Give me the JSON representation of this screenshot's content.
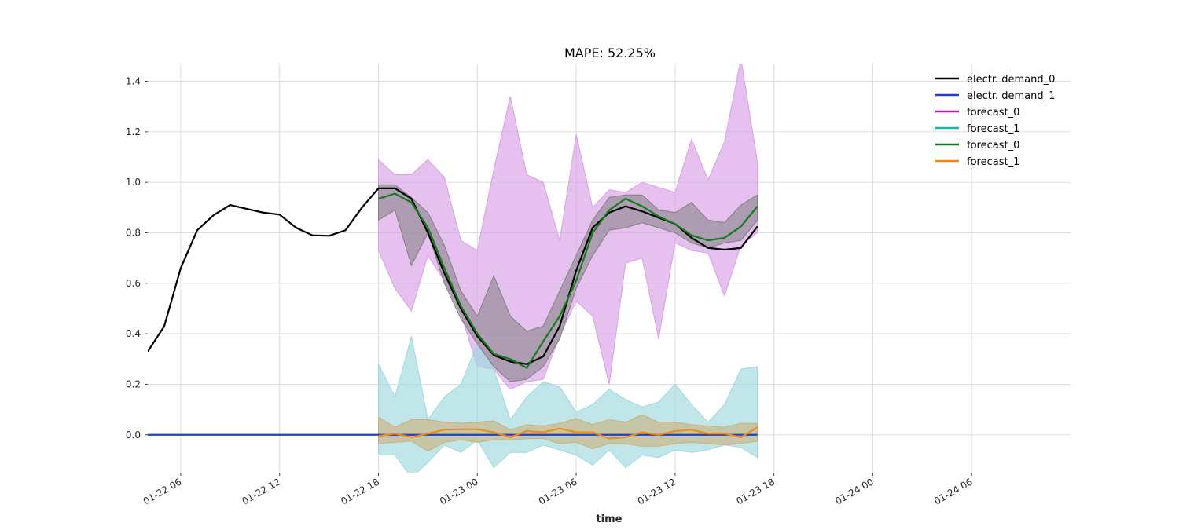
{
  "chart_data": {
    "type": "line",
    "title": "MAPE: 52.25%",
    "xlabel": "time",
    "ylabel": "",
    "x_range": [
      "2015-01-22 04:00",
      "2015-01-24 12:00"
    ],
    "ylim": [
      -0.15,
      1.47
    ],
    "grid": true,
    "legend_position": "top-right",
    "x_ticks": [
      {
        "t": "2015-01-22 06:00",
        "label": "01-22 06"
      },
      {
        "t": "2015-01-22 12:00",
        "label": "01-22 12"
      },
      {
        "t": "2015-01-22 18:00",
        "label": "01-22 18"
      },
      {
        "t": "2015-01-23 00:00",
        "label": "01-23 00"
      },
      {
        "t": "2015-01-23 06:00",
        "label": "01-23 06"
      },
      {
        "t": "2015-01-23 12:00",
        "label": "01-23 12"
      },
      {
        "t": "2015-01-23 18:00",
        "label": "01-23 18"
      },
      {
        "t": "2015-01-24 00:00",
        "label": "01-24 00"
      },
      {
        "t": "2015-01-24 06:00",
        "label": "01-24 06"
      }
    ],
    "y_ticks": [
      {
        "value": 0.0,
        "label": "0.0"
      },
      {
        "value": 0.2,
        "label": "0.2"
      },
      {
        "value": 0.4,
        "label": "0.4"
      },
      {
        "value": 0.6,
        "label": "0.6"
      },
      {
        "value": 0.8,
        "label": "0.8"
      },
      {
        "value": 1.0,
        "label": "1.0"
      },
      {
        "value": 1.2,
        "label": "1.2"
      },
      {
        "value": 1.4,
        "label": "1.4"
      }
    ],
    "forecast_x": [
      "2015-01-22 18:00",
      "2015-01-22 19:00",
      "2015-01-22 20:00",
      "2015-01-22 21:00",
      "2015-01-22 22:00",
      "2015-01-22 23:00",
      "2015-01-23 00:00",
      "2015-01-23 01:00",
      "2015-01-23 02:00",
      "2015-01-23 03:00",
      "2015-01-23 04:00",
      "2015-01-23 05:00",
      "2015-01-23 06:00",
      "2015-01-23 07:00",
      "2015-01-23 08:00",
      "2015-01-23 09:00",
      "2015-01-23 10:00",
      "2015-01-23 11:00",
      "2015-01-23 12:00",
      "2015-01-23 13:00",
      "2015-01-23 14:00",
      "2015-01-23 15:00",
      "2015-01-23 16:00",
      "2015-01-23 17:00"
    ],
    "bands": [
      {
        "color": "#d9a0e6",
        "opacity": 0.65,
        "upper": [
          1.09,
          1.03,
          1.03,
          1.09,
          1.02,
          0.77,
          0.73,
          1.05,
          1.34,
          1.03,
          1.0,
          0.77,
          1.19,
          0.9,
          0.97,
          0.96,
          1.0,
          0.98,
          0.96,
          1.17,
          1.01,
          1.16,
          1.49,
          1.08
        ],
        "lower": [
          0.73,
          0.58,
          0.49,
          0.71,
          0.61,
          0.48,
          0.27,
          0.26,
          0.18,
          0.21,
          0.22,
          0.39,
          0.53,
          0.47,
          0.2,
          0.68,
          0.7,
          0.38,
          0.76,
          0.73,
          0.72,
          0.55,
          0.75,
          0.8
        ]
      },
      {
        "color": "#9ed8df",
        "opacity": 0.65,
        "upper": [
          0.28,
          0.15,
          0.39,
          0.06,
          0.15,
          0.2,
          0.36,
          0.26,
          0.06,
          0.15,
          0.21,
          0.19,
          0.09,
          0.12,
          0.18,
          0.14,
          0.11,
          0.13,
          0.2,
          0.12,
          0.05,
          0.12,
          0.26,
          0.27
        ],
        "lower": [
          -0.08,
          -0.08,
          -0.17,
          -0.11,
          -0.04,
          -0.07,
          -0.02,
          -0.13,
          -0.07,
          -0.07,
          -0.04,
          -0.06,
          -0.08,
          -0.12,
          -0.06,
          -0.13,
          -0.08,
          -0.09,
          -0.06,
          -0.07,
          -0.06,
          -0.04,
          -0.05,
          -0.09
        ]
      },
      {
        "color": "#7f7f7f",
        "opacity": 0.55,
        "upper": [
          0.99,
          0.99,
          0.94,
          0.88,
          0.75,
          0.57,
          0.47,
          0.63,
          0.47,
          0.41,
          0.43,
          0.57,
          0.71,
          0.85,
          0.94,
          0.95,
          0.95,
          0.89,
          0.88,
          0.92,
          0.85,
          0.84,
          0.91,
          0.95
        ],
        "lower": [
          0.85,
          0.89,
          0.67,
          0.8,
          0.6,
          0.46,
          0.36,
          0.27,
          0.21,
          0.22,
          0.27,
          0.38,
          0.58,
          0.71,
          0.81,
          0.82,
          0.84,
          0.82,
          0.8,
          0.76,
          0.74,
          0.76,
          0.77,
          0.85
        ]
      },
      {
        "color": "#c9b07a",
        "opacity": 0.6,
        "upper": [
          0.07,
          0.03,
          0.06,
          0.06,
          0.05,
          0.045,
          0.05,
          0.055,
          0.02,
          0.04,
          0.035,
          0.045,
          0.065,
          0.04,
          0.06,
          0.05,
          0.08,
          0.05,
          0.05,
          0.04,
          0.035,
          0.03,
          0.045,
          0.045
        ],
        "lower": [
          -0.035,
          -0.03,
          -0.025,
          -0.065,
          -0.03,
          -0.02,
          -0.03,
          -0.02,
          -0.02,
          -0.015,
          -0.015,
          -0.035,
          -0.03,
          -0.055,
          -0.035,
          -0.035,
          -0.045,
          -0.045,
          -0.035,
          -0.03,
          -0.035,
          -0.04,
          -0.035,
          -0.025
        ]
      }
    ],
    "series": [
      {
        "name": "electr. demand_0",
        "color": "#000000",
        "x": [
          "2015-01-22 04:00",
          "2015-01-22 05:00",
          "2015-01-22 06:00",
          "2015-01-22 07:00",
          "2015-01-22 08:00",
          "2015-01-22 09:00",
          "2015-01-22 10:00",
          "2015-01-22 11:00",
          "2015-01-22 12:00",
          "2015-01-22 13:00",
          "2015-01-22 14:00",
          "2015-01-22 15:00",
          "2015-01-22 16:00",
          "2015-01-22 17:00",
          "2015-01-22 18:00",
          "2015-01-22 19:00",
          "2015-01-22 20:00",
          "2015-01-22 21:00",
          "2015-01-22 22:00",
          "2015-01-22 23:00",
          "2015-01-23 00:00",
          "2015-01-23 01:00",
          "2015-01-23 02:00",
          "2015-01-23 03:00",
          "2015-01-23 04:00",
          "2015-01-23 05:00",
          "2015-01-23 06:00",
          "2015-01-23 07:00",
          "2015-01-23 08:00",
          "2015-01-23 09:00",
          "2015-01-23 10:00",
          "2015-01-23 11:00",
          "2015-01-23 12:00",
          "2015-01-23 13:00",
          "2015-01-23 14:00",
          "2015-01-23 15:00",
          "2015-01-23 16:00",
          "2015-01-23 17:00"
        ],
        "values": [
          0.33,
          0.43,
          0.66,
          0.81,
          0.87,
          0.91,
          0.895,
          0.88,
          0.872,
          0.82,
          0.79,
          0.788,
          0.81,
          0.9,
          0.976,
          0.976,
          0.935,
          0.8,
          0.64,
          0.5,
          0.39,
          0.315,
          0.29,
          0.28,
          0.31,
          0.43,
          0.65,
          0.82,
          0.88,
          0.905,
          0.885,
          0.86,
          0.835,
          0.78,
          0.74,
          0.733,
          0.74,
          0.825
        ]
      },
      {
        "name": "electr. demand_1",
        "color": "#1a3fd6",
        "x": [
          "2015-01-22 04:00",
          "2015-01-23 17:00"
        ],
        "values": [
          0.0,
          0.0
        ]
      },
      {
        "name": "forecast_0",
        "color": "#b01fb8",
        "x": [],
        "values": []
      },
      {
        "name": "forecast_1",
        "color": "#1fb5b8",
        "x": [],
        "values": []
      },
      {
        "name": "forecast_0",
        "color": "#157a1c",
        "x": "forecast_x",
        "values": [
          0.935,
          0.955,
          0.92,
          0.82,
          0.66,
          0.51,
          0.4,
          0.32,
          0.3,
          0.265,
          0.37,
          0.47,
          0.61,
          0.8,
          0.89,
          0.935,
          0.905,
          0.865,
          0.835,
          0.79,
          0.77,
          0.78,
          0.825,
          0.905
        ]
      },
      {
        "name": "forecast_1",
        "color": "#f08a1c",
        "x": "forecast_x",
        "values": [
          -0.005,
          0.005,
          -0.01,
          0.005,
          0.02,
          0.022,
          0.022,
          0.01,
          -0.01,
          0.015,
          0.01,
          0.025,
          0.01,
          0.01,
          -0.015,
          -0.01,
          0.01,
          0.0,
          0.015,
          0.02,
          0.005,
          0.005,
          -0.01,
          0.03
        ]
      }
    ]
  }
}
